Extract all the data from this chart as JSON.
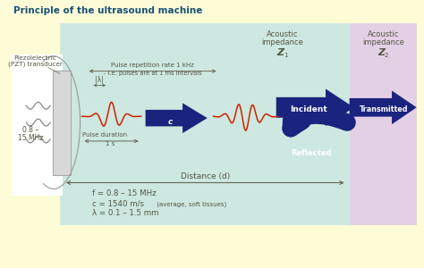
{
  "title": "Principle of the ultrasound machine",
  "bg_color": "#fefcd7",
  "panel_z1_color": "#cde8e0",
  "panel_z2_color": "#e4d0e4",
  "transducer_color": "#d8d8d8",
  "transducer_edge": "#aaaaaa",
  "arrow_color": "#1a237e",
  "wave_color": "#cc2200",
  "text_color": "#555544",
  "title_color": "#1a5276",
  "annot_color": "#666655",
  "pulse_rep_text": "Pulse repetition rate 1 kHz",
  "pulse_rep_sub": "- i.e. pulses are at 1 ms intervals",
  "pulse_dur_text": "Pulse duration",
  "pulse_dur_val": "1 s",
  "speed_label": "c",
  "distance_text": "Distance (d)",
  "formula1": "f = 0.8 – 15 MHz",
  "formula2": "c = 1540 m/s (average, soft tissues)",
  "formula3": "λ = 0.1 – 1.5 mm",
  "formula2_small": " (average, soft tissues)",
  "z1_label1": "Acoustic",
  "z1_label2": "impedance",
  "z1_label3": "Z",
  "z1_sub": "1",
  "z2_label1": "Acoustic",
  "z2_label2": "impedance",
  "z2_label3": "Z",
  "z2_sub": "2",
  "incident_text": "Incident",
  "transmitted_text": "Transmitted",
  "reflected_text": "Reflected",
  "transducer_label1": "Piezolelectric",
  "transducer_label2": "(PZT) transducer",
  "freq_text": "0.8 –",
  "freq_text2": "15 MHz",
  "lambda_label": "λ"
}
